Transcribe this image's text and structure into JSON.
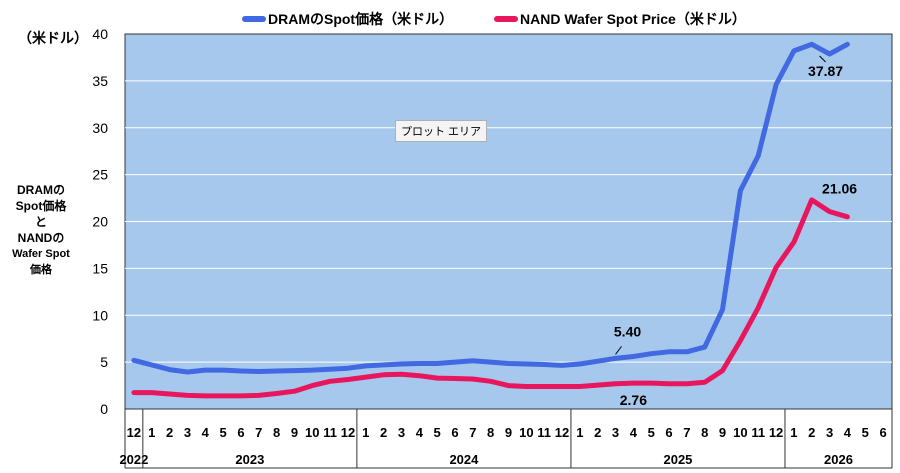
{
  "chart_data": {
    "type": "line",
    "legend_position": "top",
    "grid": true,
    "ylim": [
      0,
      40
    ],
    "yticks": [
      0,
      5,
      10,
      15,
      20,
      25,
      30,
      35,
      40
    ],
    "y_unit": "（米ドル）",
    "ylabel_lines": [
      "DRAMの",
      "Spot価格と",
      "NANDの",
      "Wafer Spot価格"
    ],
    "x_month_labels": [
      "12",
      "1",
      "2",
      "3",
      "4",
      "5",
      "6",
      "7",
      "8",
      "9",
      "10",
      "11",
      "12",
      "1",
      "2",
      "3",
      "4",
      "5",
      "6",
      "7",
      "8",
      "9",
      "10",
      "11",
      "12",
      "1",
      "2",
      "3",
      "4",
      "5",
      "6",
      "7",
      "8",
      "9",
      "10",
      "11",
      "12",
      "1",
      "2",
      "3",
      "4",
      "5",
      "6"
    ],
    "years": [
      {
        "label": "2022",
        "start": 0,
        "end": 0
      },
      {
        "label": "2023",
        "start": 1,
        "end": 12
      },
      {
        "label": "2024",
        "start": 13,
        "end": 24
      },
      {
        "label": "2025",
        "start": 25,
        "end": 36
      },
      {
        "label": "2026",
        "start": 37,
        "end": 42
      }
    ],
    "series": [
      {
        "name": "DRAMのSpot価格（米ドル）",
        "color": "#4169e1",
        "values": [
          5.2,
          4.7,
          4.2,
          3.95,
          4.15,
          4.15,
          4.05,
          4.0,
          4.05,
          4.1,
          4.15,
          4.25,
          4.35,
          4.6,
          4.7,
          4.8,
          4.85,
          4.85,
          5.0,
          5.15,
          5.0,
          4.85,
          4.8,
          4.75,
          4.65,
          4.8,
          5.1,
          5.4,
          5.6,
          5.9,
          6.1,
          6.1,
          6.6,
          10.6,
          23.3,
          27.0,
          34.6,
          38.2,
          38.9,
          37.87,
          38.9,
          null,
          null
        ]
      },
      {
        "name": "NAND Wafer Spot Price（米ドル）",
        "color": "#e8175d",
        "values": [
          1.75,
          1.75,
          1.6,
          1.45,
          1.4,
          1.4,
          1.4,
          1.45,
          1.65,
          1.9,
          2.5,
          2.95,
          3.15,
          3.4,
          3.65,
          3.7,
          3.55,
          3.3,
          3.25,
          3.2,
          2.95,
          2.5,
          2.4,
          2.4,
          2.4,
          2.4,
          2.55,
          2.7,
          2.76,
          2.76,
          2.7,
          2.7,
          2.85,
          4.1,
          7.3,
          10.8,
          15.1,
          17.8,
          22.3,
          21.06,
          20.5,
          null,
          null
        ]
      }
    ],
    "annotations": [
      {
        "series": 0,
        "index": 27,
        "text": "5.40"
      },
      {
        "series": 1,
        "index": 28,
        "text": "2.76"
      },
      {
        "series": 0,
        "index": 39,
        "text": "37.87"
      },
      {
        "series": 1,
        "index": 39,
        "text": "21.06"
      }
    ]
  },
  "ui": {
    "plot_area_tag": "プロット エリア",
    "legend": {
      "dram": "DRAMのSpot価格（米ドル）",
      "nand": "NAND Wafer Spot Price（米ドル）"
    }
  }
}
